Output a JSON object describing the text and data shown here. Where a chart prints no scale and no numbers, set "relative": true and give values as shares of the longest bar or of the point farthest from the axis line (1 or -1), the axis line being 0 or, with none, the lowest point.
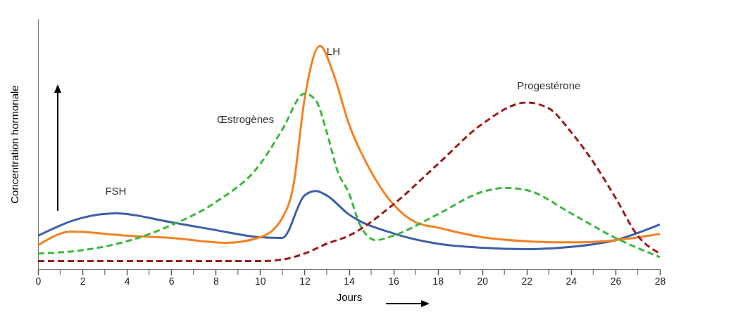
{
  "chart_data": {
    "type": "line",
    "relative": true,
    "xlabel": "Jours",
    "ylabel": "Concentration hormonale",
    "xlim": [
      0,
      28
    ],
    "xticks": [
      0,
      {
        "value": 1,
        "label": null
      },
      2,
      {
        "value": 3,
        "label": null
      },
      4,
      {
        "value": 5,
        "label": null
      },
      6,
      {
        "value": 7,
        "label": null
      },
      8,
      {
        "value": 9,
        "label": null
      },
      10,
      {
        "value": 11,
        "label": null
      },
      12,
      {
        "value": 13,
        "label": null
      },
      14,
      {
        "value": 15,
        "label": null
      },
      16,
      {
        "value": 17,
        "label": null
      },
      18,
      {
        "value": 19,
        "label": null
      },
      20,
      {
        "value": 21,
        "label": null
      },
      22,
      {
        "value": 23,
        "label": null
      },
      24,
      {
        "value": 25,
        "label": null
      },
      26,
      {
        "value": 27,
        "label": null
      },
      28
    ],
    "grid": false,
    "legend": false,
    "marker": "none",
    "series": [
      {
        "name": "FSH",
        "color": "#3d5fa8",
        "line_style": "solid",
        "x": [
          0,
          2,
          3.5,
          6,
          8,
          10,
          11,
          12,
          12.5,
          13,
          14,
          16,
          18,
          20,
          22,
          24,
          26,
          28
        ],
        "values": [
          0.15,
          0.23,
          0.25,
          0.21,
          0.175,
          0.143,
          0.14,
          0.33,
          0.35,
          0.33,
          0.245,
          0.16,
          0.114,
          0.096,
          0.09,
          0.1,
          0.13,
          0.2
        ]
      },
      {
        "name": "LH",
        "color": "#f58220",
        "line_style": "solid",
        "x": [
          0,
          1.5,
          4,
          6,
          8.5,
          10,
          11,
          11.5,
          12,
          12.7,
          13.3,
          14,
          15,
          16,
          17,
          18,
          20,
          22,
          24,
          26,
          28
        ],
        "values": [
          0.107,
          0.168,
          0.15,
          0.14,
          0.118,
          0.143,
          0.23,
          0.375,
          0.76,
          1,
          0.875,
          0.65,
          0.436,
          0.29,
          0.21,
          0.186,
          0.143,
          0.125,
          0.12,
          0.13,
          0.157
        ]
      },
      {
        "name": "Œstrogènes",
        "color": "#3cb83c",
        "line_style": "dashed",
        "x": [
          0,
          2,
          4,
          6,
          8,
          10,
          11,
          12,
          12.5,
          13,
          13.5,
          14,
          14.5,
          15.2,
          16,
          18,
          20,
          21,
          22,
          24,
          26,
          28
        ],
        "values": [
          0.07,
          0.085,
          0.125,
          0.197,
          0.3,
          0.47,
          0.625,
          0.786,
          0.757,
          0.614,
          0.436,
          0.34,
          0.197,
          0.13,
          0.15,
          0.246,
          0.346,
          0.364,
          0.354,
          0.25,
          0.14,
          0.054
        ]
      },
      {
        "name": "Progestérone",
        "color": "#9b1c1c",
        "line_style": "dashed",
        "x": [
          0,
          10,
          11,
          12,
          13,
          14,
          16,
          18,
          20,
          22,
          23,
          24,
          25,
          26,
          27,
          28
        ],
        "values": [
          0.036,
          0.036,
          0.043,
          0.07,
          0.114,
          0.15,
          0.29,
          0.47,
          0.65,
          0.746,
          0.72,
          0.614,
          0.48,
          0.32,
          0.15,
          0.07
        ]
      }
    ]
  }
}
